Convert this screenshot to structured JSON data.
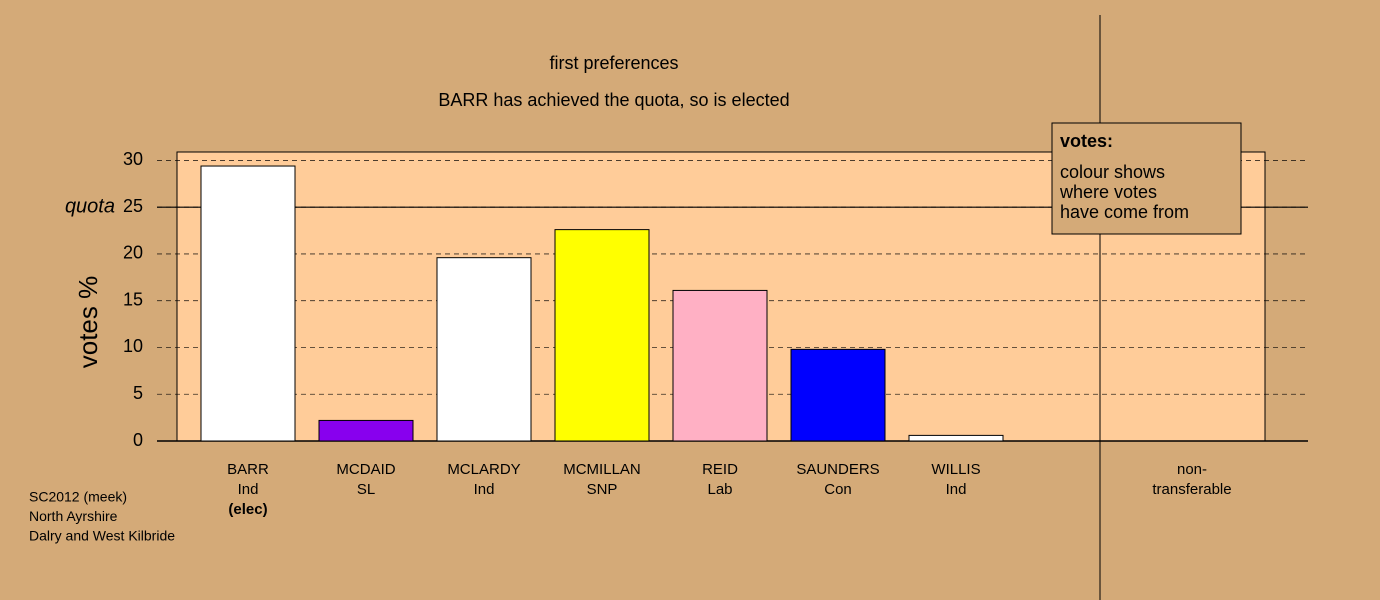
{
  "chart_data": {
    "type": "bar",
    "title": "first preferences",
    "subtitle": "BARR has achieved the quota, so is elected",
    "y_label": "votes %",
    "categories": [
      "BARR",
      "MCDAID",
      "MCLARDY",
      "MCMILLAN",
      "REID",
      "SAUNDERS",
      "WILLIS",
      "non-"
    ],
    "subcategories": [
      "Ind",
      "SL",
      "Ind",
      "SNP",
      "Lab",
      "Con",
      "Ind",
      "transferable"
    ],
    "category_notes": [
      "(elec)",
      null,
      null,
      null,
      null,
      null,
      null,
      null
    ],
    "values": [
      29.4,
      2.2,
      19.6,
      22.6,
      16.1,
      9.8,
      0.6,
      0
    ],
    "colors": [
      "#ffffff",
      "#8800ee",
      "#ffffff",
      "#ffff00",
      "#ffb0c4",
      "#0000ff",
      "#ffffff",
      "#ffffff"
    ],
    "ylim": [
      0,
      30.9
    ],
    "yticks": [
      0,
      5,
      10,
      15,
      20,
      25,
      30
    ],
    "grid": true,
    "quota": 25,
    "quota_label": "quota",
    "legend": {
      "title": "votes:",
      "lines": [
        "colour shows",
        "where votes",
        "have come from"
      ]
    },
    "footnotes": [
      "SC2012 (meek)",
      "North Ayrshire",
      "Dalry and West Kilbride"
    ]
  }
}
